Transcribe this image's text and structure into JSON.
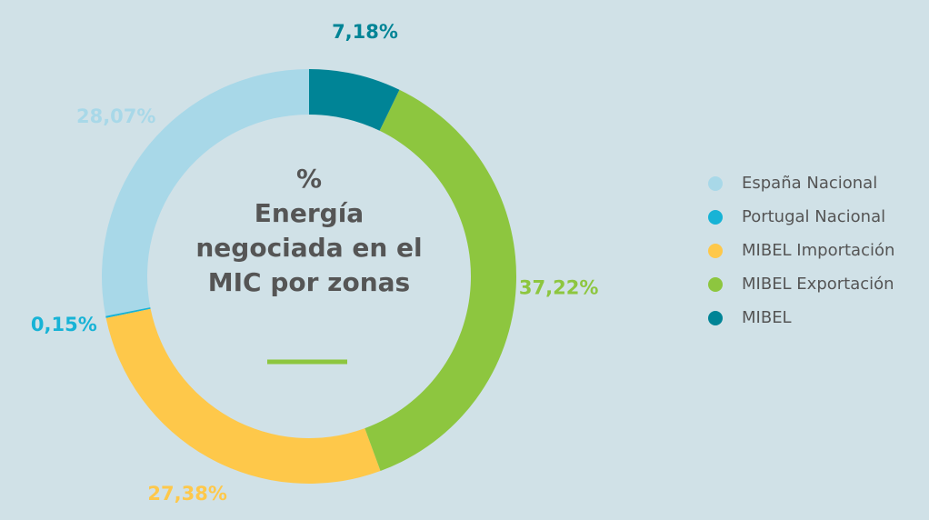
{
  "chart_data": {
    "type": "donut",
    "title": "%",
    "subtitle": [
      "Energía",
      "negociada en el",
      "MIC por zonas"
    ],
    "categories": [
      "España Nacional",
      "Portugal Nacional",
      "MIBEL Importación",
      "MIBEL Exportación",
      "MIBEL"
    ],
    "values": [
      28.07,
      0.15,
      27.38,
      37.22,
      7.18
    ],
    "value_labels": [
      "28,07%",
      "0,15%",
      "27,38%",
      "37,22%",
      "7,18%"
    ],
    "colors": [
      "#a8d8e8",
      "#17b3d6",
      "#fec84a",
      "#8dc63f",
      "#008496"
    ],
    "legend": "right"
  }
}
